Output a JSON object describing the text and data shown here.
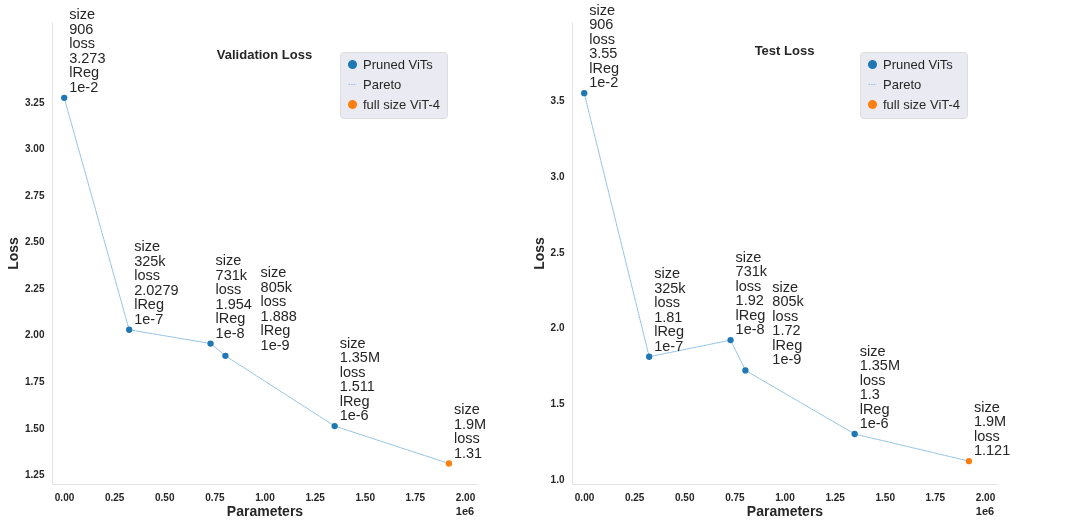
{
  "chart_data": [
    {
      "type": "scatter",
      "title": "Validation Loss",
      "xlabel": "Parameters",
      "ylabel": "Loss",
      "xlim": [
        -0.06,
        2.06
      ],
      "xticks": [
        {
          "value": 0,
          "label": "0.00"
        },
        0.25,
        {
          "value": 0.5,
          "label": "0.50"
        },
        0.75,
        {
          "value": 1,
          "label": "1.00"
        },
        1.25,
        {
          "value": 1.5,
          "label": "1.50"
        },
        1.75,
        {
          "value": 2,
          "label": "2.00"
        }
      ],
      "ylim": [
        1.2,
        3.68
      ],
      "yticks": [
        1.25,
        {
          "value": 1.5,
          "label": "1.50"
        },
        1.75,
        {
          "value": 2,
          "label": "2.00"
        },
        2.25,
        {
          "value": 2.5,
          "label": "2.50"
        },
        2.75,
        {
          "value": 3,
          "label": "3.00"
        },
        3.25
      ],
      "grid": false,
      "legend": "top right",
      "series": [
        {
          "name": "Pruned ViTs",
          "type": "scatter",
          "marker": "circle",
          "color": "#1f77b4",
          "x": [
            0.000906,
            0.325,
            0.731,
            0.805,
            1.35
          ],
          "values": [
            3.273,
            2.0279,
            1.954,
            1.888,
            1.511
          ]
        },
        {
          "name": "Pareto",
          "type": "line",
          "color": "#8cbfe3",
          "line_style": "dotted",
          "x": [
            0.000906,
            0.325,
            0.731,
            0.805,
            1.35,
            1.92
          ],
          "values": [
            3.273,
            2.0279,
            1.954,
            1.888,
            1.511,
            1.31
          ]
        },
        {
          "name": "full size ViT-4",
          "type": "scatter",
          "marker": "circle",
          "color": "#ff7f0e",
          "x": [
            1.92
          ],
          "values": [
            1.31
          ]
        }
      ],
      "annotations": [
        {
          "text": "size\n906\nloss\n3.273\nlReg\n1e-2",
          "x": 0.000906,
          "y": 3.273
        },
        {
          "text": "size\n325k\nloss\n2.0279\nlReg\n1e-7",
          "x": 0.325,
          "y": 2.0279
        },
        {
          "text": "size\n731k\nloss\n1.954\nlReg\n1e-8",
          "x": 0.731,
          "y": 1.954
        },
        {
          "text": "size\n805k\nloss\n1.888\nlReg\n1e-9",
          "x": 0.805,
          "y": 1.888
        },
        {
          "text": "size\n1.35M\nloss\n1.511\nlReg\n1e-6",
          "x": 1.35,
          "y": 1.511
        },
        {
          "text": "size\n1.9M\nloss\n1.31",
          "x": 1.92,
          "y": 1.31
        },
        "1e6"
      ]
    },
    {
      "type": "scatter",
      "title": "Test Loss",
      "xlabel": "Parameters",
      "ylabel": "Loss",
      "xlim": [
        -0.06,
        2.06
      ],
      "xticks": [
        {
          "value": 0,
          "label": "0.00"
        },
        0.25,
        {
          "value": 0.5,
          "label": "0.50"
        },
        0.75,
        {
          "value": 1,
          "label": "1.00"
        },
        1.25,
        {
          "value": 1.5,
          "label": "1.50"
        },
        1.75,
        {
          "value": 2,
          "label": "2.00"
        }
      ],
      "ylim": [
        0.97,
        4.02
      ],
      "yticks": [
        {
          "value": 1,
          "label": "1.0"
        },
        1.5,
        {
          "value": 2,
          "label": "2.0"
        },
        2.5,
        {
          "value": 3,
          "label": "3.0"
        },
        3.5
      ],
      "grid": false,
      "legend": "top right",
      "series": [
        {
          "name": "Pruned ViTs",
          "type": "scatter",
          "marker": "circle",
          "color": "#1f77b4",
          "x": [
            0.000906,
            0.325,
            0.731,
            0.805,
            1.35
          ],
          "values": [
            3.55,
            1.81,
            1.92,
            1.72,
            1.3
          ]
        },
        {
          "name": "Pareto",
          "type": "line",
          "color": "#8cbfe3",
          "line_style": "dotted",
          "x": [
            0.000906,
            0.325,
            0.731,
            0.805,
            1.35,
            1.92
          ],
          "values": [
            3.55,
            1.81,
            1.92,
            1.72,
            1.3,
            1.121
          ]
        },
        {
          "name": "full size ViT-4",
          "type": "scatter",
          "marker": "circle",
          "color": "#ff7f0e",
          "x": [
            1.92
          ],
          "values": [
            1.121
          ]
        }
      ],
      "annotations": [
        {
          "text": "size\n906\nloss\n3.55\nlReg\n1e-2",
          "x": 0.000906,
          "y": 3.55
        },
        {
          "text": "size\n325k\nloss\n1.81\nlReg\n1e-7",
          "x": 0.325,
          "y": 1.81
        },
        {
          "text": "size\n731k\nloss\n1.92\nlReg\n1e-8",
          "x": 0.731,
          "y": 1.92
        },
        {
          "text": "size\n805k\nloss\n1.72\nlReg\n1e-9",
          "x": 0.805,
          "y": 1.72
        },
        {
          "text": "size\n1.35M\nloss\n1.3\nlReg\n1e-6",
          "x": 1.35,
          "y": 1.3
        },
        {
          "text": "size\n1.9M\nloss\n1.121",
          "x": 1.92,
          "y": 1.121
        },
        "1e6"
      ]
    }
  ]
}
